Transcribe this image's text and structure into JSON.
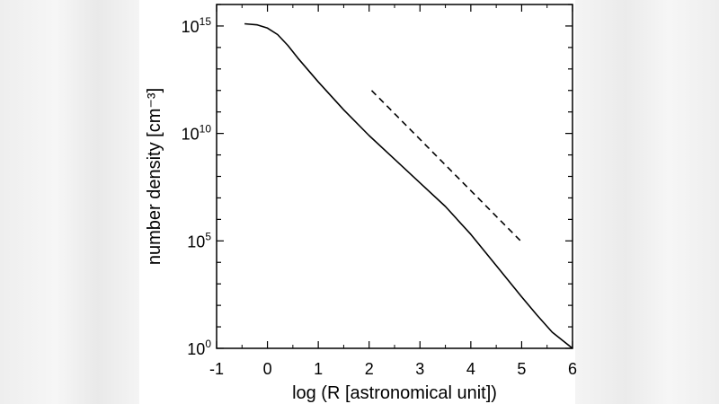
{
  "chart_data": {
    "type": "line",
    "xlabel": "log (R [astronomical unit])",
    "ylabel": "number density [cm⁻³]",
    "xlim": [
      -1,
      6
    ],
    "ylim_log10": [
      0,
      16
    ],
    "y_scale": "log",
    "x_ticks": [
      "-1",
      "0",
      "1",
      "2",
      "3",
      "4",
      "5",
      "6"
    ],
    "y_ticks": [
      {
        "base": "10",
        "exp": "15",
        "log10": 15
      },
      {
        "base": "10",
        "exp": "10",
        "log10": 10
      },
      {
        "base": "10",
        "exp": "5",
        "log10": 5
      },
      {
        "base": "10",
        "exp": "0",
        "log10": 0
      }
    ],
    "series": [
      {
        "style": "solid",
        "points": [
          [
            -0.45,
            15.1
          ],
          [
            -0.2,
            15.05
          ],
          [
            0.0,
            14.9
          ],
          [
            0.2,
            14.6
          ],
          [
            0.4,
            14.1
          ],
          [
            0.6,
            13.5
          ],
          [
            1.0,
            12.4
          ],
          [
            1.5,
            11.1
          ],
          [
            2.0,
            9.9
          ],
          [
            2.5,
            8.8
          ],
          [
            3.0,
            7.7
          ],
          [
            3.5,
            6.6
          ],
          [
            4.0,
            5.3
          ],
          [
            4.5,
            3.85
          ],
          [
            5.0,
            2.4
          ],
          [
            5.3,
            1.55
          ],
          [
            5.6,
            0.75
          ],
          [
            6.0,
            0.0
          ]
        ]
      },
      {
        "style": "dashed",
        "points": [
          [
            2.05,
            12.0
          ],
          [
            5.0,
            4.95
          ]
        ]
      }
    ],
    "grid": false,
    "legend": "none"
  }
}
